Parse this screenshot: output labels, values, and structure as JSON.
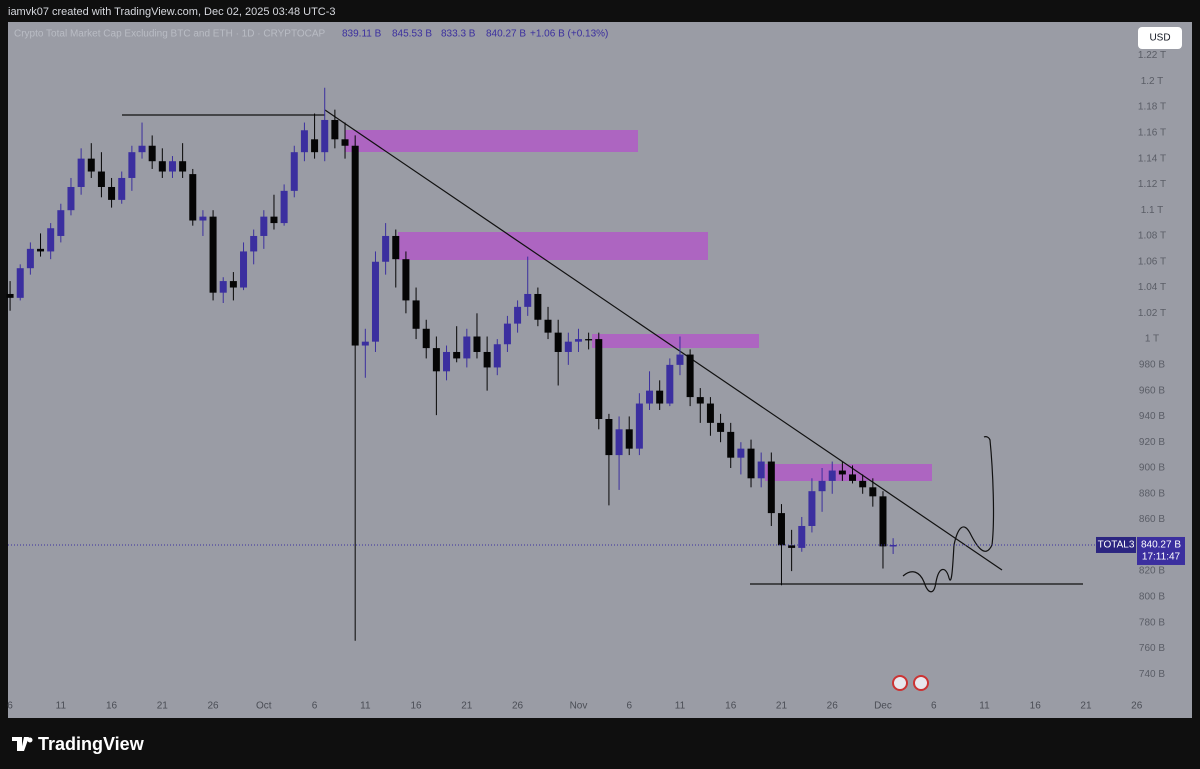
{
  "header": {
    "text": "iamvk07 created with TradingView.com, Dec 02, 2025 03:48 UTC-3"
  },
  "chart_data": {
    "type": "candlestick",
    "legend": {
      "title": "Crypto Total Market Cap Excluding BTC and ETH · 1D · CRYPTOCAP",
      "open": "839.11 B",
      "high": "845.53 B",
      "low": "833.3 B",
      "close": "840.27 B",
      "change": "+1.06 B (+0.13%)"
    },
    "currency": "USD",
    "symbol": "TOTAL3",
    "last_price_label": "840.27 B",
    "countdown": "17:11:47",
    "colors": {
      "up": "#3b2f9f",
      "down": "#050505"
    },
    "grid": false,
    "categories": [
      "Sep 6",
      "Sep 7",
      "Sep 8",
      "Sep 9",
      "Sep 10",
      "Sep 11",
      "Sep 12",
      "Sep 13",
      "Sep 14",
      "Sep 15",
      "Sep 16",
      "Sep 17",
      "Sep 18",
      "Sep 19",
      "Sep 20",
      "Sep 21",
      "Sep 22",
      "Sep 23",
      "Sep 24",
      "Sep 25",
      "Sep 26",
      "Sep 27",
      "Sep 28",
      "Sep 29",
      "Sep 30",
      "Oct 1",
      "Oct 2",
      "Oct 3",
      "Oct 4",
      "Oct 5",
      "Oct 6",
      "Oct 7",
      "Oct 8",
      "Oct 9",
      "Oct 10",
      "Oct 11",
      "Oct 12",
      "Oct 13",
      "Oct 14",
      "Oct 15",
      "Oct 16",
      "Oct 17",
      "Oct 18",
      "Oct 19",
      "Oct 20",
      "Oct 21",
      "Oct 22",
      "Oct 23",
      "Oct 24",
      "Oct 25",
      "Oct 26",
      "Oct 27",
      "Oct 28",
      "Oct 29",
      "Oct 30",
      "Oct 31",
      "Nov 1",
      "Nov 2",
      "Nov 3",
      "Nov 4",
      "Nov 5",
      "Nov 6",
      "Nov 7",
      "Nov 8",
      "Nov 9",
      "Nov 10",
      "Nov 11",
      "Nov 12",
      "Nov 13",
      "Nov 14",
      "Nov 15",
      "Nov 16",
      "Nov 17",
      "Nov 18",
      "Nov 19",
      "Nov 20",
      "Nov 21",
      "Nov 22",
      "Nov 23",
      "Nov 24",
      "Nov 25",
      "Nov 26",
      "Nov 27",
      "Nov 28",
      "Nov 29",
      "Nov 30",
      "Dec 1",
      "Dec 2"
    ],
    "open": [
      1035,
      1032,
      1055,
      1070,
      1068,
      1080,
      1100,
      1118,
      1140,
      1130,
      1118,
      1108,
      1125,
      1145,
      1150,
      1138,
      1130,
      1138,
      1128,
      1092,
      1095,
      1036,
      1045,
      1040,
      1068,
      1080,
      1095,
      1090,
      1115,
      1145,
      1155,
      1145,
      1170,
      1155,
      1150,
      995,
      998,
      1060,
      1080,
      1062,
      1030,
      1008,
      993,
      975,
      990,
      985,
      1002,
      990,
      978,
      996,
      1012,
      1025,
      1035,
      1015,
      1005,
      990,
      998,
      1000,
      1000,
      938,
      910,
      930,
      915,
      950,
      960,
      950,
      980,
      988,
      955,
      950,
      935,
      928,
      908,
      915,
      892,
      905,
      865,
      840,
      838,
      855,
      882,
      890,
      898,
      895,
      890,
      885,
      878,
      839.11
    ],
    "high": [
      1045,
      1058,
      1075,
      1082,
      1090,
      1105,
      1125,
      1148,
      1152,
      1145,
      1125,
      1130,
      1150,
      1168,
      1158,
      1148,
      1142,
      1152,
      1132,
      1100,
      1100,
      1048,
      1052,
      1075,
      1085,
      1100,
      1112,
      1120,
      1150,
      1168,
      1175,
      1195,
      1178,
      1168,
      1158,
      1008,
      1068,
      1090,
      1085,
      1068,
      1040,
      1015,
      1002,
      995,
      1010,
      1008,
      1020,
      1002,
      1000,
      1018,
      1030,
      1064,
      1040,
      1025,
      1015,
      1005,
      1008,
      1005,
      1005,
      942,
      940,
      940,
      958,
      975,
      968,
      985,
      1002,
      992,
      962,
      955,
      942,
      935,
      920,
      922,
      912,
      912,
      872,
      852,
      862,
      892,
      900,
      905,
      905,
      902,
      895,
      892,
      882,
      845.53
    ],
    "low": [
      1022,
      1030,
      1050,
      1064,
      1062,
      1075,
      1096,
      1112,
      1125,
      1110,
      1102,
      1105,
      1115,
      1140,
      1132,
      1125,
      1125,
      1125,
      1088,
      1080,
      1030,
      1028,
      1030,
      1038,
      1058,
      1070,
      1085,
      1088,
      1110,
      1138,
      1140,
      1138,
      1148,
      1140,
      766,
      970,
      990,
      1050,
      1040,
      1020,
      1000,
      985,
      941,
      968,
      982,
      978,
      985,
      960,
      972,
      990,
      1005,
      1018,
      1010,
      1000,
      964,
      980,
      990,
      992,
      930,
      871,
      883,
      910,
      910,
      945,
      945,
      948,
      972,
      948,
      935,
      925,
      920,
      900,
      895,
      885,
      885,
      855,
      809,
      820,
      835,
      850,
      866,
      880,
      890,
      888,
      880,
      870,
      822,
      833.3
    ],
    "close": [
      1032,
      1055,
      1070,
      1068,
      1086,
      1100,
      1118,
      1140,
      1130,
      1118,
      1108,
      1125,
      1145,
      1150,
      1138,
      1130,
      1138,
      1130,
      1092,
      1095,
      1036,
      1045,
      1040,
      1068,
      1080,
      1095,
      1090,
      1115,
      1145,
      1162,
      1145,
      1170,
      1155,
      1150,
      995,
      998,
      1060,
      1080,
      1062,
      1030,
      1008,
      993,
      975,
      990,
      985,
      1002,
      990,
      978,
      996,
      1012,
      1025,
      1035,
      1015,
      1005,
      990,
      998,
      1000,
      999,
      938,
      910,
      930,
      915,
      950,
      960,
      950,
      980,
      988,
      955,
      950,
      935,
      928,
      908,
      915,
      892,
      905,
      865,
      840,
      838,
      855,
      882,
      890,
      898,
      895,
      890,
      885,
      878,
      839.21,
      840.27
    ],
    "ylim": [
      720,
      1246
    ],
    "yticks": [
      {
        "value": 1220,
        "label": "1.22 T"
      },
      {
        "value": 1200,
        "label": "1.2 T"
      },
      {
        "value": 1180,
        "label": "1.18 T"
      },
      {
        "value": 1160,
        "label": "1.16 T"
      },
      {
        "value": 1140,
        "label": "1.14 T"
      },
      {
        "value": 1120,
        "label": "1.12 T"
      },
      {
        "value": 1100,
        "label": "1.1 T"
      },
      {
        "value": 1080,
        "label": "1.08 T"
      },
      {
        "value": 1060,
        "label": "1.06 T"
      },
      {
        "value": 1040,
        "label": "1.04 T"
      },
      {
        "value": 1020,
        "label": "1.02 T"
      },
      {
        "value": 1000,
        "label": "1 T"
      },
      {
        "value": 980,
        "label": "980 B"
      },
      {
        "value": 960,
        "label": "960 B"
      },
      {
        "value": 940,
        "label": "940 B"
      },
      {
        "value": 920,
        "label": "920 B"
      },
      {
        "value": 900,
        "label": "900 B"
      },
      {
        "value": 880,
        "label": "880 B"
      },
      {
        "value": 860,
        "label": "860 B"
      },
      {
        "value": 820,
        "label": "820 B"
      },
      {
        "value": 800,
        "label": "800 B"
      },
      {
        "value": 780,
        "label": "780 B"
      },
      {
        "value": 760,
        "label": "760 B"
      },
      {
        "value": 740,
        "label": "740 B"
      }
    ],
    "xticks": [
      {
        "value": "Sep 6",
        "label": "6"
      },
      {
        "value": "Sep 11",
        "label": "11"
      },
      {
        "value": "Sep 16",
        "label": "16"
      },
      {
        "value": "Sep 21",
        "label": "21"
      },
      {
        "value": "Sep 26",
        "label": "26"
      },
      {
        "value": "Oct 1",
        "label": "Oct"
      },
      {
        "value": "Oct 6",
        "label": "6"
      },
      {
        "value": "Oct 11",
        "label": "11"
      },
      {
        "value": "Oct 16",
        "label": "16"
      },
      {
        "value": "Oct 21",
        "label": "21"
      },
      {
        "value": "Oct 26",
        "label": "26"
      },
      {
        "value": "Nov 1",
        "label": "Nov"
      },
      {
        "value": "Nov 6",
        "label": "6"
      },
      {
        "value": "Nov 11",
        "label": "11"
      },
      {
        "value": "Nov 16",
        "label": "16"
      },
      {
        "value": "Nov 21",
        "label": "21"
      },
      {
        "value": "Nov 26",
        "label": "26"
      },
      {
        "value": "Dec 1",
        "label": "Dec"
      },
      {
        "value": "Dec 6",
        "label": "6"
      },
      {
        "value": "Dec 11",
        "label": "11"
      },
      {
        "value": "Dec 16",
        "label": "16"
      },
      {
        "value": "Dec 21",
        "label": "21"
      },
      {
        "value": "Dec 26",
        "label": "26"
      }
    ]
  },
  "footer": {
    "brand": "TradingView"
  }
}
